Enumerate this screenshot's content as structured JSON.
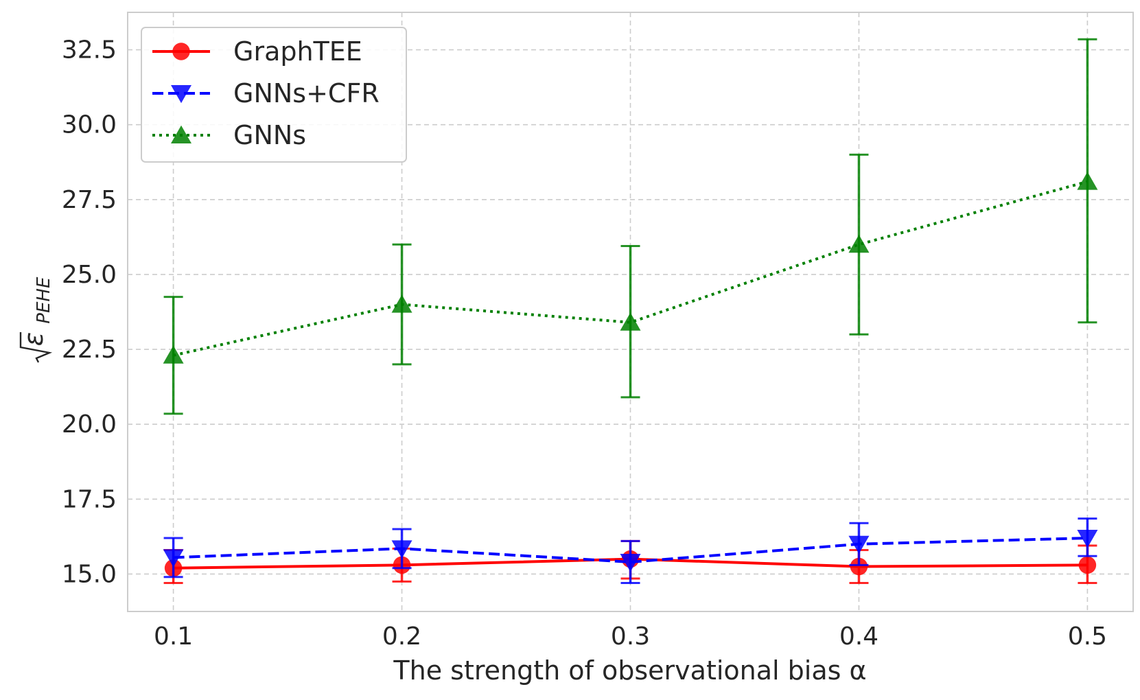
{
  "chart_data": {
    "type": "line",
    "title": "",
    "xlabel": "The strength of observational bias α",
    "ylabel_main": "ε",
    "ylabel_sub": "PEHE",
    "ylabel_text": "√ε PEHE",
    "x": [
      0.1,
      0.2,
      0.3,
      0.4,
      0.5
    ],
    "x_tick_labels": [
      "0.1",
      "0.2",
      "0.3",
      "0.4",
      "0.5"
    ],
    "xlim": [
      0.08,
      0.52
    ],
    "ylim": [
      13.75,
      33.75
    ],
    "y_ticks": [
      15.0,
      17.5,
      20.0,
      22.5,
      25.0,
      27.5,
      30.0,
      32.5
    ],
    "y_tick_labels": [
      "15.0",
      "17.5",
      "20.0",
      "22.5",
      "25.0",
      "27.5",
      "30.0",
      "32.5"
    ],
    "grid": true,
    "legend_position": "top-left",
    "series": [
      {
        "name": "GraphTEE",
        "color": "#ff0000",
        "linestyle": "solid",
        "marker": "circle",
        "values": [
          15.2,
          15.3,
          15.5,
          15.25,
          15.3
        ],
        "err_low": [
          14.7,
          14.75,
          14.85,
          14.7,
          14.7
        ],
        "err_high": [
          15.8,
          15.85,
          16.1,
          15.8,
          15.95
        ]
      },
      {
        "name": "GNNs+CFR",
        "color": "#0000ff",
        "linestyle": "dashed",
        "marker": "triangle-down",
        "values": [
          15.55,
          15.85,
          15.4,
          16.0,
          16.2
        ],
        "err_low": [
          14.9,
          15.2,
          14.7,
          15.3,
          15.6
        ],
        "err_high": [
          16.2,
          16.5,
          16.1,
          16.7,
          16.85
        ]
      },
      {
        "name": "GNNs",
        "color": "#008000",
        "linestyle": "dotted",
        "marker": "triangle-up",
        "values": [
          22.3,
          24.0,
          23.4,
          26.0,
          28.1
        ],
        "err_low": [
          20.35,
          22.0,
          20.9,
          23.0,
          23.4
        ],
        "err_high": [
          24.25,
          26.0,
          25.95,
          29.0,
          32.85
        ]
      }
    ]
  }
}
